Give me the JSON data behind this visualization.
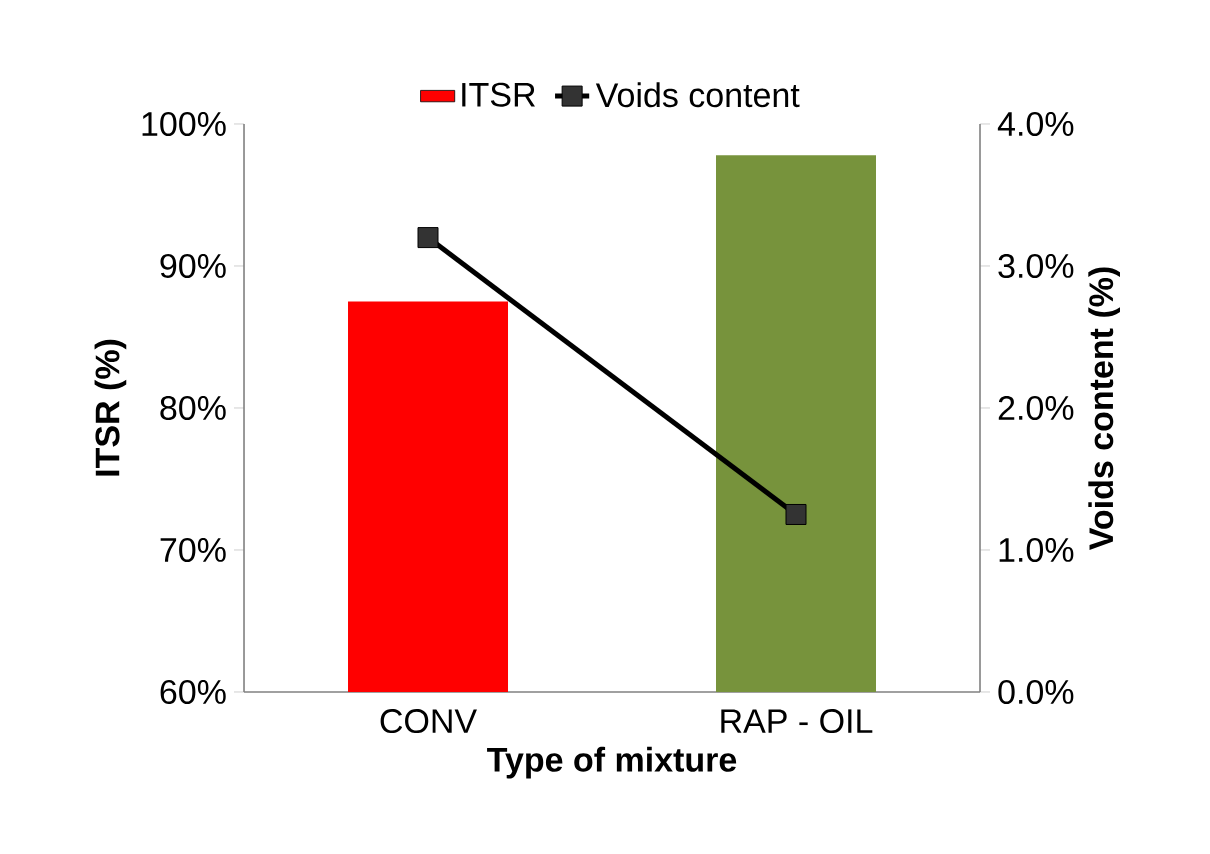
{
  "chart_data": {
    "type": "bar",
    "categories": [
      "CONV",
      "RAP - OIL"
    ],
    "xlabel": "Type of mixture",
    "ylabel": "ITSR (%)",
    "y2label": "Voids content (%)",
    "ylim": [
      60,
      100
    ],
    "yticks": [
      {
        "value": 60,
        "label": "60%"
      },
      {
        "value": 70,
        "label": "70%"
      },
      {
        "value": 80,
        "label": "80%"
      },
      {
        "value": 90,
        "label": "90%"
      },
      {
        "value": 100,
        "label": "100%"
      }
    ],
    "y2lim": [
      0,
      4
    ],
    "y2ticks": [
      {
        "value": 0,
        "label": "0.0%"
      },
      {
        "value": 1,
        "label": "1.0%"
      },
      {
        "value": 2,
        "label": "2.0%"
      },
      {
        "value": 3,
        "label": "3.0%"
      },
      {
        "value": 4,
        "label": "4.0%"
      }
    ],
    "legend": "top",
    "marker": "square",
    "series": [
      {
        "name": "ITSR",
        "colors": [
          "#ff0000",
          "#77933c"
        ],
        "values": [
          87.5,
          97.8
        ]
      },
      {
        "name": "Voids content",
        "type": "line",
        "axis": "y2",
        "color": "#000000",
        "values": [
          3.2,
          1.25
        ]
      }
    ]
  }
}
